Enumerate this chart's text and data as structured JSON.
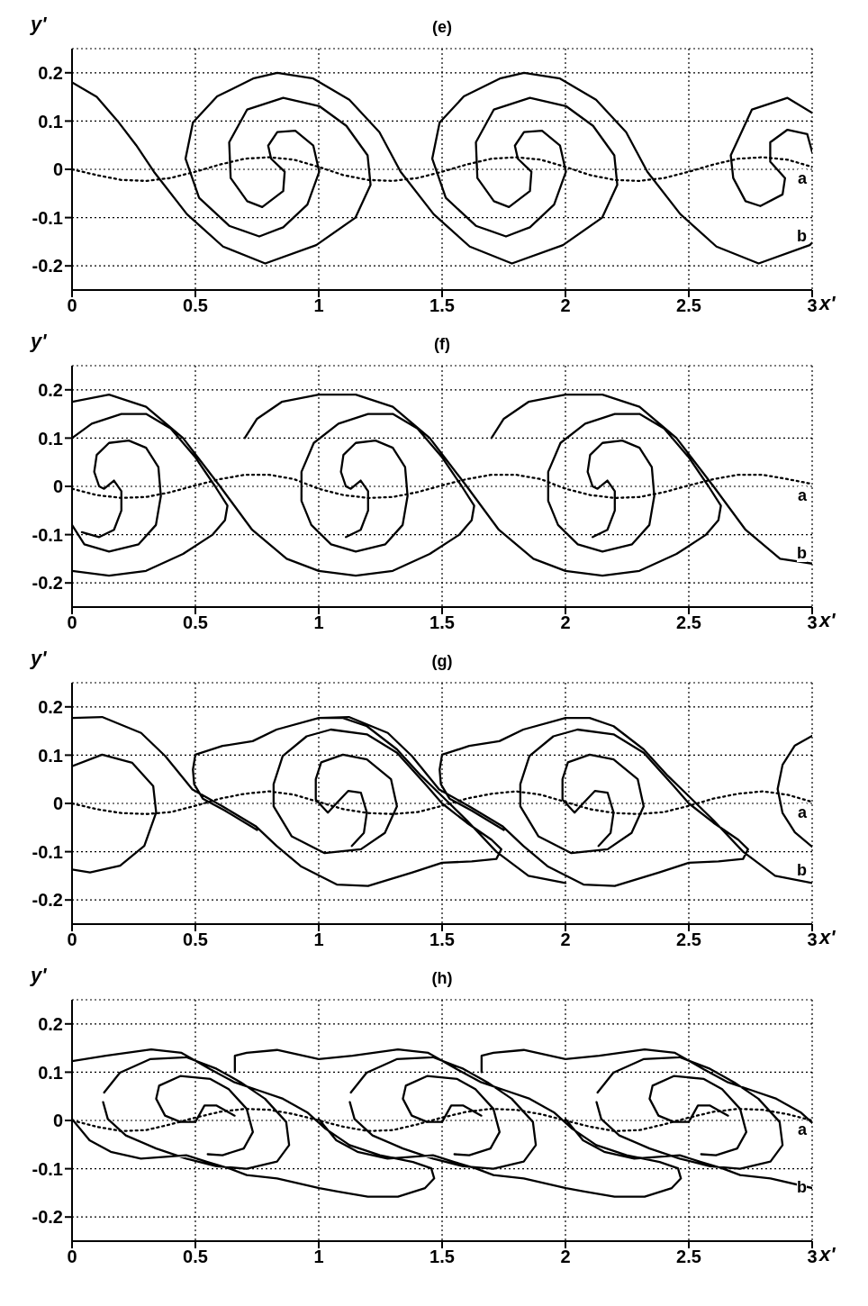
{
  "chart_data": [
    {
      "type": "line",
      "title": "(e)",
      "xlabel": "x'",
      "ylabel": "y'",
      "xlim": [
        0,
        3
      ],
      "ylim": [
        -0.25,
        0.25
      ],
      "xticks": [
        0,
        0.5,
        1,
        1.5,
        2,
        2.5,
        3
      ],
      "yticks": [
        -0.2,
        -0.1,
        0,
        0.1,
        0.2
      ],
      "grid": true,
      "series": [
        {
          "name": "a",
          "color": "#000000",
          "line_style": "dotted",
          "x": [
            0,
            0.1,
            0.2,
            0.3,
            0.4,
            0.5,
            0.6,
            0.7,
            0.8,
            0.9,
            1,
            1.1,
            1.2,
            1.3,
            1.4,
            1.5,
            1.6,
            1.7,
            1.8,
            1.9,
            2,
            2.1,
            2.2,
            2.3,
            2.4,
            2.5,
            2.6,
            2.7,
            2.8,
            2.9,
            3
          ],
          "values": [
            0,
            -0.012,
            -0.022,
            -0.024,
            -0.018,
            -0.005,
            0.01,
            0.022,
            0.025,
            0.02,
            0.005,
            -0.012,
            -0.022,
            -0.024,
            -0.018,
            -0.005,
            0.01,
            0.022,
            0.025,
            0.02,
            0.005,
            -0.012,
            -0.022,
            -0.024,
            -0.018,
            -0.005,
            0.01,
            0.022,
            0.025,
            0.02,
            0.005
          ]
        },
        {
          "name": "b",
          "color": "#000000",
          "line_style": "solid",
          "x": [
            0,
            0.1,
            0.185,
            0.26,
            0.332,
            0.466,
            0.612,
            0.783,
            0.99,
            1.149,
            1.21,
            1.198,
            1.112,
            1.002,
            0.856,
            0.71,
            0.637,
            0.643,
            0.71,
            0.771,
            0.856,
            0.862,
            0.807,
            0.795,
            0.832,
            0.905,
            0.978,
            1.002,
            0.954,
            0.856,
            0.759,
            0.637,
            0.515,
            0.46,
            0.49,
            0.588,
            0.734,
            0.832,
            0.978,
            1.124,
            1.246,
            1.332,
            1.466,
            1.612,
            1.783,
            1.99,
            2.149,
            2.21,
            2.198,
            2.112,
            2.002,
            1.856,
            1.71,
            1.637,
            1.643,
            1.71,
            1.771,
            1.856,
            1.862,
            1.807,
            1.795,
            1.832,
            1.905,
            1.978,
            2.002,
            1.954,
            1.856,
            1.759,
            1.637,
            1.515,
            1.46,
            1.49,
            1.588,
            1.734,
            1.832,
            1.978,
            2.124,
            2.246,
            2.332,
            2.466,
            2.612,
            2.783,
            2.99,
            3,
            null,
            3,
            2.9,
            2.756,
            2.67,
            2.68,
            2.73,
            2.79,
            2.88,
            2.89,
            2.83,
            2.83,
            2.9,
            2.98,
            3
          ],
          "values": [
            0.18,
            0.15,
            0.1,
            0.05,
            -0.005,
            -0.093,
            -0.16,
            -0.195,
            -0.157,
            -0.1,
            -0.032,
            0.029,
            0.09,
            0.131,
            0.148,
            0.124,
            0.056,
            -0.018,
            -0.066,
            -0.078,
            -0.045,
            -0.005,
            0.022,
            0.049,
            0.077,
            0.08,
            0.049,
            -0.005,
            -0.073,
            -0.12,
            -0.139,
            -0.117,
            -0.059,
            0.022,
            0.097,
            0.151,
            0.188,
            0.2,
            0.188,
            0.144,
            0.077,
            -0.005,
            -0.093,
            -0.16,
            -0.195,
            -0.157,
            -0.1,
            -0.032,
            0.029,
            0.09,
            0.131,
            0.148,
            0.124,
            0.056,
            -0.018,
            -0.066,
            -0.078,
            -0.045,
            -0.005,
            0.022,
            0.049,
            0.077,
            0.08,
            0.049,
            -0.005,
            -0.073,
            -0.12,
            -0.139,
            -0.117,
            -0.059,
            0.022,
            0.097,
            0.151,
            0.188,
            0.2,
            0.188,
            0.144,
            0.077,
            -0.005,
            -0.093,
            -0.16,
            -0.195,
            -0.157,
            -0.152,
            null,
            0.117,
            0.148,
            0.124,
            0.029,
            -0.018,
            -0.066,
            -0.076,
            -0.052,
            -0.018,
            0.016,
            0.056,
            0.082,
            0.073,
            0.036
          ]
        }
      ]
    },
    {
      "type": "line",
      "title": "(f)",
      "xlabel": "x'",
      "ylabel": "y'",
      "xlim": [
        0,
        3
      ],
      "ylim": [
        -0.25,
        0.25
      ],
      "xticks": [
        0,
        0.5,
        1,
        1.5,
        2,
        2.5,
        3
      ],
      "yticks": [
        -0.2,
        -0.1,
        0,
        0.1,
        0.2
      ],
      "grid": true,
      "series": [
        {
          "name": "a",
          "color": "#000000",
          "line_style": "dotted",
          "x": [
            0,
            0.1,
            0.2,
            0.3,
            0.4,
            0.5,
            0.6,
            0.7,
            0.8,
            0.9,
            1,
            1.1,
            1.2,
            1.3,
            1.4,
            1.5,
            1.6,
            1.7,
            1.8,
            1.9,
            2,
            2.1,
            2.2,
            2.3,
            2.4,
            2.5,
            2.6,
            2.7,
            2.8,
            2.9,
            3
          ],
          "values": [
            -0.005,
            -0.018,
            -0.024,
            -0.022,
            -0.012,
            0.002,
            0.015,
            0.024,
            0.024,
            0.015,
            -0.005,
            -0.018,
            -0.024,
            -0.022,
            -0.012,
            0.002,
            0.015,
            0.024,
            0.024,
            0.015,
            -0.005,
            -0.018,
            -0.024,
            -0.022,
            -0.012,
            0.002,
            0.015,
            0.024,
            0.024,
            0.015,
            0.005
          ]
        },
        {
          "name": "b",
          "color": "#000000",
          "line_style": "solid",
          "x": [
            0,
            0.15,
            0.3,
            0.45,
            0.57,
            0.62,
            0.63,
            0.58,
            0.5,
            0.4,
            0.3,
            0.2,
            0.08,
            0,
            null,
            0,
            0.05,
            0.15,
            0.27,
            0.34,
            0.36,
            0.35,
            0.3,
            0.23,
            0.15,
            0.1,
            0.09,
            0.11,
            0.13,
            0.17,
            0.2,
            0.2,
            0.17,
            0.11,
            0.04,
            null,
            0,
            0.15,
            0.3,
            0.45,
            0.6,
            0.73,
            0.87,
            1,
            1.15,
            1.3,
            1.45,
            1.57,
            1.62,
            1.63,
            1.58,
            1.5,
            1.4,
            1.3,
            1.2,
            1.08,
            0.98,
            0.93,
            0.93,
            0.97,
            1.05,
            1.15,
            1.27,
            1.34,
            1.36,
            1.35,
            1.3,
            1.23,
            1.15,
            1.1,
            1.09,
            1.11,
            1.13,
            1.17,
            1.2,
            1.2,
            1.17,
            1.11,
            null,
            0.7,
            0.75,
            0.85,
            1,
            1.15,
            1.3,
            1.45,
            1.6,
            1.73,
            1.87,
            2,
            2.15,
            2.3,
            2.45,
            2.57,
            2.62,
            2.63,
            2.58,
            2.5,
            2.4,
            2.3,
            2.2,
            2.08,
            1.98,
            1.93,
            1.93,
            1.97,
            2.05,
            2.15,
            2.27,
            2.34,
            2.36,
            2.35,
            2.3,
            2.23,
            2.15,
            2.1,
            2.09,
            2.11,
            2.13,
            2.17,
            2.2,
            2.2,
            2.17,
            2.11,
            null,
            1.7,
            1.75,
            1.85,
            2,
            2.15,
            2.3,
            2.45,
            2.6,
            2.73,
            2.87,
            3
          ],
          "values": [
            -0.175,
            -0.185,
            -0.175,
            -0.14,
            -0.1,
            -0.07,
            -0.04,
            0,
            0.06,
            0.12,
            0.15,
            0.15,
            0.13,
            0.1,
            null,
            -0.08,
            -0.12,
            -0.135,
            -0.12,
            -0.08,
            -0.02,
            0.04,
            0.08,
            0.095,
            0.09,
            0.065,
            0.03,
            0,
            -0.005,
            0.012,
            -0.01,
            -0.05,
            -0.09,
            -0.105,
            -0.095,
            null,
            0.175,
            0.19,
            0.165,
            0.1,
            0,
            -0.09,
            -0.15,
            -0.175,
            -0.185,
            -0.175,
            -0.14,
            -0.1,
            -0.07,
            -0.04,
            0,
            0.06,
            0.12,
            0.15,
            0.15,
            0.13,
            0.09,
            0.03,
            -0.03,
            -0.08,
            -0.12,
            -0.135,
            -0.12,
            -0.08,
            -0.02,
            0.04,
            0.08,
            0.095,
            0.09,
            0.065,
            0.03,
            0,
            -0.005,
            0.012,
            -0.01,
            -0.05,
            -0.09,
            -0.105,
            null,
            0.1,
            0.14,
            0.175,
            0.19,
            0.19,
            0.165,
            0.1,
            0,
            -0.09,
            -0.15,
            -0.175,
            -0.185,
            -0.175,
            -0.14,
            -0.1,
            -0.07,
            -0.04,
            0,
            0.06,
            0.12,
            0.15,
            0.15,
            0.13,
            0.09,
            0.03,
            -0.03,
            -0.08,
            -0.12,
            -0.135,
            -0.12,
            -0.08,
            -0.02,
            0.04,
            0.08,
            0.095,
            0.09,
            0.065,
            0.03,
            0,
            -0.005,
            0.012,
            -0.01,
            -0.05,
            -0.09,
            -0.105,
            null,
            0.1,
            0.14,
            0.175,
            0.19,
            0.19,
            0.165,
            0.1,
            0,
            -0.09,
            -0.15,
            -0.16
          ]
        }
      ]
    },
    {
      "type": "line",
      "title": "(g)",
      "xlabel": "x'",
      "ylabel": "y'",
      "xlim": [
        0,
        3
      ],
      "ylim": [
        -0.25,
        0.25
      ],
      "xticks": [
        0,
        0.5,
        1,
        1.5,
        2,
        2.5,
        3
      ],
      "yticks": [
        -0.2,
        -0.1,
        0,
        0.1,
        0.2
      ],
      "grid": true,
      "series": [
        {
          "name": "a",
          "color": "#000000",
          "line_style": "dotted",
          "x": [
            0,
            0.1,
            0.2,
            0.3,
            0.4,
            0.5,
            0.6,
            0.7,
            0.8,
            0.9,
            1,
            1.1,
            1.2,
            1.3,
            1.4,
            1.5,
            1.6,
            1.7,
            1.8,
            1.9,
            2,
            2.1,
            2.2,
            2.3,
            2.4,
            2.5,
            2.6,
            2.7,
            2.8,
            2.9,
            3
          ],
          "values": [
            0,
            -0.012,
            -0.02,
            -0.022,
            -0.018,
            -0.005,
            0.01,
            0.02,
            0.025,
            0.018,
            0.003,
            -0.012,
            -0.02,
            -0.022,
            -0.018,
            -0.005,
            0.01,
            0.02,
            0.025,
            0.018,
            0.003,
            -0.012,
            -0.02,
            -0.022,
            -0.018,
            -0.005,
            0.01,
            0.02,
            0.025,
            0.018,
            0.003
          ]
        },
        {
          "name": "b",
          "color": "#000000",
          "line_style": "solid",
          "x": [
            0,
            0.122,
            0.244,
            0.329,
            0.341,
            0.293,
            0.195,
            0.073,
            0,
            null,
            0.988,
            0.988,
            1.01,
            1.098,
            1.195,
            1.293,
            1.317,
            1.268,
            1.171,
            1.024,
            0.89,
            0.817,
            0.817,
            0.854,
            0.951,
            1.049,
            1.195,
            1.317,
            1.439,
            1.5,
            1.6,
            1.7,
            1.74,
            1.72,
            1.62,
            1.5,
            1.38,
            1.2,
            1.073,
            0.927,
            0.829,
            0.744,
            0.61,
            0.488,
            0.378,
            0.28,
            0.122,
            0,
            null,
            0.988,
            1.037,
            1.073,
            1.12,
            1.171,
            1.195,
            1.183,
            1.134,
            null,
            0.75,
            0.62,
            0.53,
            0.495,
            0.49,
            0.5,
            0.61,
            0.732,
            0.829,
            1,
            1.098,
            1.195,
            1.317,
            1.415,
            1.5,
            1.6,
            1.72,
            1.85,
            2,
            null,
            1.988,
            1.988,
            2.01,
            2.098,
            2.195,
            2.293,
            2.317,
            2.268,
            2.171,
            2.024,
            1.89,
            1.817,
            1.817,
            1.854,
            1.951,
            2.049,
            2.195,
            2.317,
            2.439,
            2.5,
            2.6,
            2.7,
            2.74,
            2.72,
            2.62,
            2.5,
            2.38,
            2.2,
            2.073,
            1.927,
            1.829,
            1.744,
            1.61,
            1.488,
            1.378,
            1.28,
            1.122,
            1,
            null,
            1.988,
            2.037,
            2.073,
            2.12,
            2.171,
            2.195,
            2.183,
            2.134,
            null,
            1.75,
            1.62,
            1.53,
            1.495,
            1.49,
            1.5,
            1.61,
            1.732,
            1.829,
            2,
            2.098,
            2.195,
            2.317,
            2.415,
            2.5,
            2.6,
            2.72,
            2.85,
            3,
            null,
            3,
            2.93,
            2.88,
            2.86,
            2.88,
            2.93,
            3
          ],
          "values": [
            0.077,
            0.101,
            0.084,
            0.036,
            -0.019,
            -0.088,
            -0.129,
            -0.143,
            -0.137,
            null,
            0.008,
            0.05,
            0.085,
            0.101,
            0.091,
            0.05,
            -0.006,
            -0.061,
            -0.095,
            -0.103,
            -0.068,
            -0.006,
            0.04,
            0.098,
            0.139,
            0.153,
            0.143,
            0.105,
            0.036,
            0,
            -0.04,
            -0.075,
            -0.095,
            -0.115,
            -0.12,
            -0.123,
            -0.143,
            -0.171,
            -0.168,
            -0.13,
            -0.088,
            -0.047,
            -0.006,
            0.029,
            0.098,
            0.146,
            0.179,
            0.177,
            null,
            0.008,
            -0.019,
            0.001,
            0.026,
            0.022,
            -0.019,
            -0.061,
            -0.088,
            null,
            -0.055,
            -0.015,
            0.01,
            0.04,
            0.07,
            0.101,
            0.119,
            0.129,
            0.153,
            0.177,
            0.177,
            0.16,
            0.112,
            0.057,
            0.015,
            -0.035,
            -0.1,
            -0.15,
            -0.165,
            null,
            0.008,
            0.05,
            0.085,
            0.101,
            0.091,
            0.05,
            -0.006,
            -0.061,
            -0.095,
            -0.103,
            -0.068,
            -0.006,
            0.04,
            0.098,
            0.139,
            0.153,
            0.143,
            0.105,
            0.036,
            0,
            -0.04,
            -0.075,
            -0.095,
            -0.115,
            -0.12,
            -0.123,
            -0.143,
            -0.171,
            -0.168,
            -0.13,
            -0.088,
            -0.047,
            -0.006,
            0.029,
            0.098,
            0.146,
            0.179,
            0.177,
            null,
            0.008,
            -0.019,
            0.001,
            0.026,
            0.022,
            -0.019,
            -0.061,
            -0.088,
            null,
            -0.055,
            -0.015,
            0.01,
            0.04,
            0.07,
            0.101,
            0.119,
            0.129,
            0.153,
            0.177,
            0.177,
            0.16,
            0.112,
            0.057,
            0.015,
            -0.035,
            -0.1,
            -0.15,
            -0.165,
            null,
            0.14,
            0.12,
            0.08,
            0.03,
            -0.02,
            -0.06,
            -0.09
          ]
        }
      ]
    },
    {
      "type": "line",
      "title": "(h)",
      "xlabel": "x'",
      "ylabel": "y'",
      "xlim": [
        0,
        3
      ],
      "ylim": [
        -0.25,
        0.25
      ],
      "xticks": [
        0,
        0.5,
        1,
        1.5,
        2,
        2.5,
        3
      ],
      "yticks": [
        -0.2,
        -0.1,
        0,
        0.1,
        0.2
      ],
      "grid": true,
      "series": [
        {
          "name": "a",
          "color": "#000000",
          "line_style": "dotted",
          "x": [
            0,
            0.1,
            0.2,
            0.3,
            0.4,
            0.5,
            0.6,
            0.7,
            0.8,
            0.9,
            1,
            1.1,
            1.2,
            1.3,
            1.4,
            1.5,
            1.6,
            1.7,
            1.8,
            1.9,
            2,
            2.1,
            2.2,
            2.3,
            2.4,
            2.5,
            2.6,
            2.7,
            2.8,
            2.9,
            3
          ],
          "values": [
            0,
            -0.013,
            -0.022,
            -0.02,
            -0.008,
            0.006,
            0.018,
            0.024,
            0.022,
            0.013,
            0,
            -0.013,
            -0.022,
            -0.02,
            -0.008,
            0.006,
            0.018,
            0.024,
            0.022,
            0.013,
            0,
            -0.013,
            -0.022,
            -0.02,
            -0.008,
            0.006,
            0.018,
            0.024,
            0.022,
            0.013,
            0
          ]
        },
        {
          "name": "b",
          "color": "#000000",
          "line_style": "solid",
          "x": [
            0,
            0.137,
            0.321,
            0.444,
            0.561,
            0.659,
            0.757,
            0.855,
            0.953,
            1.027,
            1.125,
            1.248,
            1.382,
            1.456,
            1.468,
            1.431,
            1.321,
            1.199,
            1.076,
            1.002,
            0.831,
            0.708,
            0.635,
            0.549,
            0.463,
            0.39,
            0.279,
            0.157,
            0.071,
            0,
            null,
            0.66,
            0.66,
            0.708,
            0.831,
            1,
            1.137,
            1.321,
            1.444,
            1.561,
            1.659,
            1.757,
            1.855,
            1.953,
            2.027,
            2.125,
            2.248,
            2.382,
            2.456,
            2.468,
            2.431,
            2.321,
            2.199,
            2.076,
            2.002,
            1.831,
            1.708,
            1.635,
            1.549,
            1.463,
            1.39,
            1.279,
            1.157,
            1.071,
            1,
            null,
            1.66,
            1.66,
            1.708,
            1.831,
            2,
            2.137,
            2.321,
            2.444,
            2.561,
            2.659,
            2.757,
            2.855,
            2.953,
            3,
            null,
            3,
            2.831,
            2.708,
            2.635,
            2.549,
            2.463,
            2.39,
            2.279,
            2.157,
            2.071,
            2,
            null,
            0.13,
            0.194,
            0.316,
            0.463,
            0.586,
            0.684,
            0.782,
            0.868,
            0.88,
            0.831,
            0.708,
            0.586,
            0.463,
            0.341,
            0.218,
            0.145,
            0.126,
            null,
            1.13,
            1.194,
            1.316,
            1.463,
            1.586,
            1.684,
            1.782,
            1.868,
            1.88,
            1.831,
            1.708,
            1.586,
            1.463,
            1.341,
            1.218,
            1.145,
            1.126,
            null,
            2.13,
            2.194,
            2.316,
            2.463,
            2.586,
            2.684,
            2.782,
            2.868,
            2.88,
            2.831,
            2.708,
            2.586,
            2.463,
            2.341,
            2.218,
            2.145,
            2.126,
            null,
            0.659,
            0.586,
            0.537,
            0.5,
            0.439,
            0.377,
            0.341,
            0.353,
            0.439,
            0.561,
            0.635,
            0.708,
            0.733,
            0.696,
            0.61,
            0.55,
            null,
            1.659,
            1.586,
            1.537,
            1.5,
            1.439,
            1.377,
            1.341,
            1.353,
            1.439,
            1.561,
            1.635,
            1.708,
            1.733,
            1.696,
            1.61,
            1.55,
            null,
            2.659,
            2.586,
            2.537,
            2.5,
            2.439,
            2.377,
            2.341,
            2.353,
            2.439,
            2.561,
            2.635,
            2.708,
            2.733,
            2.696,
            2.61,
            2.55
          ],
          "values": [
            0.123,
            0.134,
            0.147,
            0.14,
            0.106,
            0.079,
            0.062,
            0.045,
            0.017,
            -0.017,
            -0.051,
            -0.072,
            -0.086,
            -0.099,
            -0.12,
            -0.14,
            -0.158,
            -0.158,
            -0.147,
            -0.14,
            -0.12,
            -0.113,
            -0.099,
            -0.086,
            -0.072,
            -0.075,
            -0.079,
            -0.065,
            -0.041,
            0.003,
            null,
            0.1,
            0.134,
            0.14,
            0.146,
            0.127,
            0.134,
            0.147,
            0.14,
            0.106,
            0.079,
            0.062,
            0.045,
            0.017,
            -0.017,
            -0.051,
            -0.072,
            -0.086,
            -0.099,
            -0.12,
            -0.14,
            -0.158,
            -0.158,
            -0.147,
            -0.14,
            -0.12,
            -0.113,
            -0.099,
            -0.086,
            -0.072,
            -0.075,
            -0.079,
            -0.065,
            -0.041,
            0.003,
            null,
            0.1,
            0.134,
            0.14,
            0.146,
            0.127,
            0.134,
            0.147,
            0.14,
            0.106,
            0.079,
            0.062,
            0.045,
            0.017,
            -0.005,
            null,
            -0.14,
            -0.12,
            -0.113,
            -0.099,
            -0.086,
            -0.072,
            -0.075,
            -0.079,
            -0.065,
            -0.041,
            0.003,
            null,
            0.058,
            0.099,
            0.127,
            0.131,
            0.107,
            0.079,
            0.045,
            -0.003,
            -0.051,
            -0.085,
            -0.1,
            -0.095,
            -0.079,
            -0.058,
            -0.031,
            0.003,
            0.038,
            null,
            0.058,
            0.099,
            0.127,
            0.131,
            0.107,
            0.079,
            0.045,
            -0.003,
            -0.051,
            -0.085,
            -0.1,
            -0.095,
            -0.079,
            -0.058,
            -0.031,
            0.003,
            0.038,
            null,
            0.058,
            0.099,
            0.127,
            0.131,
            0.107,
            0.079,
            0.045,
            -0.003,
            -0.051,
            -0.085,
            -0.1,
            -0.095,
            -0.079,
            -0.058,
            -0.031,
            0.003,
            0.038,
            null,
            0.01,
            0.031,
            0.031,
            -0.003,
            -0.003,
            0.01,
            0.045,
            0.072,
            0.092,
            0.086,
            0.065,
            0.024,
            -0.024,
            -0.058,
            -0.072,
            -0.07,
            null,
            0.01,
            0.031,
            0.031,
            -0.003,
            -0.003,
            0.01,
            0.045,
            0.072,
            0.092,
            0.086,
            0.065,
            0.024,
            -0.024,
            -0.058,
            -0.072,
            -0.07,
            null,
            0.01,
            0.031,
            0.031,
            -0.003,
            -0.003,
            0.01,
            0.045,
            0.072,
            0.092,
            0.086,
            0.065,
            0.024,
            -0.024,
            -0.058,
            -0.072,
            -0.07
          ]
        }
      ]
    }
  ]
}
